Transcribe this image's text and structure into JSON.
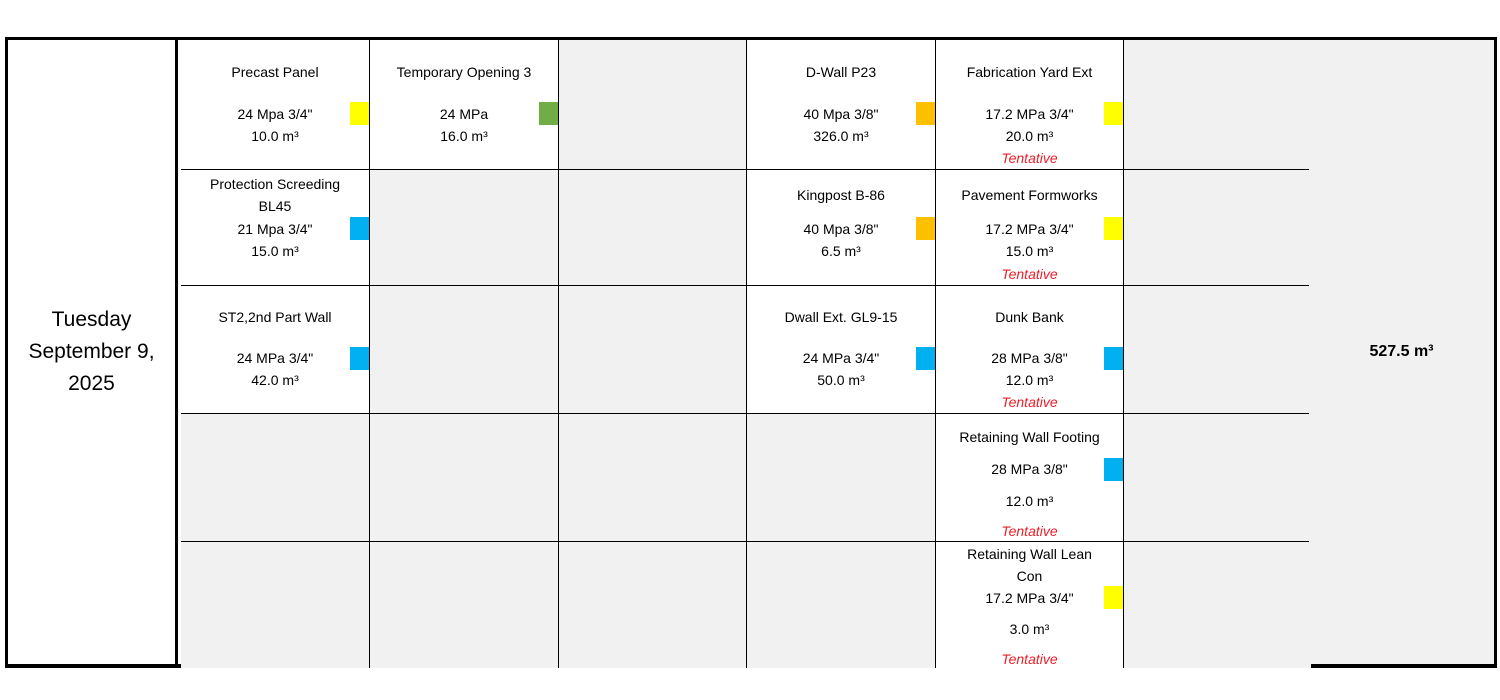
{
  "schedule": {
    "date": {
      "line1": "Tuesday",
      "line2": "September 9,",
      "line3": "2025"
    },
    "total": "527.5 m³",
    "colors": {
      "yellow": "#ffff00",
      "green": "#70ad47",
      "orange": "#ffc000",
      "blue": "#00b0f0"
    },
    "pours": {
      "precast_panel": {
        "title": "Precast Panel",
        "spec": "24 Mpa 3/4\"",
        "volume": "10.0 m³",
        "swatch": "yellow"
      },
      "temporary_opening_3": {
        "title": "Temporary Opening 3",
        "spec": "24 MPa",
        "volume": "16.0 m³",
        "swatch": "green"
      },
      "d_wall_p23": {
        "title": "D-Wall P23",
        "spec": "40 Mpa 3/8\"",
        "volume": "326.0 m³",
        "swatch": "orange"
      },
      "fabrication_yard_ext": {
        "title": "Fabrication Yard Ext",
        "spec": "17.2 MPa 3/4\"",
        "volume": "20.0 m³",
        "status": "Tentative",
        "swatch": "yellow"
      },
      "protection_screeding": {
        "title_line1": "Protection Screeding",
        "title_line2": "BL45",
        "spec": "21 Mpa 3/4\"",
        "volume": "15.0 m³",
        "swatch": "blue"
      },
      "kingpost_b86": {
        "title": "Kingpost B-86",
        "spec": "40 Mpa 3/8\"",
        "volume": "6.5 m³",
        "swatch": "orange"
      },
      "pavement_formworks": {
        "title": "Pavement Formworks",
        "spec": "17.2 MPa 3/4\"",
        "volume": "15.0 m³",
        "status": "Tentative",
        "swatch": "yellow"
      },
      "st2_part_wall": {
        "title": "ST2,2nd Part Wall",
        "spec": "24 MPa 3/4\"",
        "volume": "42.0 m³",
        "swatch": "blue"
      },
      "dwall_ext_gl9_15": {
        "title": "Dwall Ext. GL9-15",
        "spec": "24 MPa 3/4\"",
        "volume": "50.0 m³",
        "swatch": "blue"
      },
      "dunk_bank": {
        "title": "Dunk Bank",
        "spec": "28 MPa 3/8\"",
        "volume": "12.0 m³",
        "status": "Tentative",
        "swatch": "blue"
      },
      "retaining_wall_footing": {
        "title": "Retaining Wall Footing",
        "spec": "28 MPa 3/8\"",
        "volume": "12.0 m³",
        "status": "Tentative",
        "swatch": "blue"
      },
      "retaining_wall_lean_con": {
        "title_line1": "Retaining Wall Lean",
        "title_line2": "Con",
        "spec": "17.2 MPa 3/4\"",
        "volume": "3.0 m³",
        "status": "Tentative",
        "swatch": "yellow"
      }
    }
  }
}
